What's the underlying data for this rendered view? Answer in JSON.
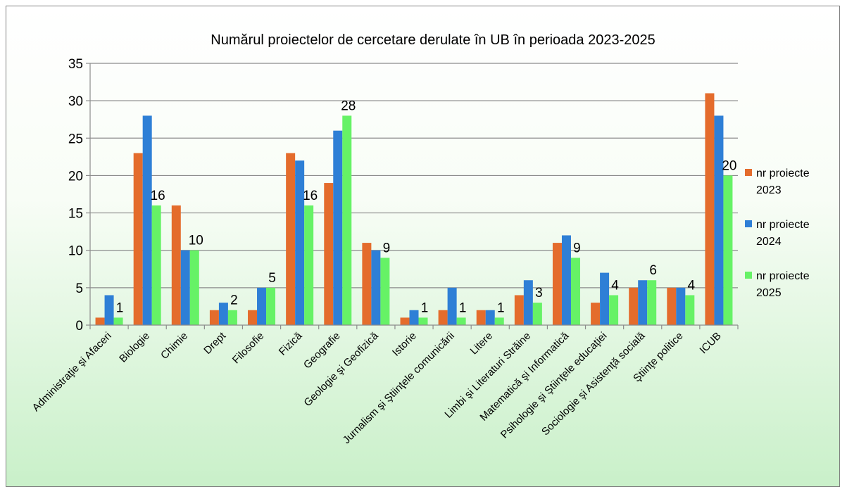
{
  "chart_data": {
    "type": "bar",
    "title": "Numărul proiectelor de cercetare derulate în UB în perioada 2023-2025",
    "xlabel": "",
    "ylabel": "",
    "ylim": [
      0,
      35
    ],
    "yticks": [
      0,
      5,
      10,
      15,
      20,
      25,
      30,
      35
    ],
    "grid": true,
    "legend_position": "right",
    "categories": [
      "Administraţie şi Afaceri",
      "Biologie",
      "Chimie",
      "Drept",
      "Filosofie",
      "Fizică",
      "Geografie",
      "Geologie şi Geofizică",
      "Istorie",
      "Jurnalism şi Ştiinţele comunicării",
      "Litere",
      "Limbi şi Literaturi Străine",
      "Matematică şi Informatică",
      "Psihologie şi Ştiinţele educaţiei",
      "Sociologie şi Asistenţă socială",
      "Ştiinţe politice",
      "ICUB"
    ],
    "series": [
      {
        "name": "nr proiecte 2023",
        "color": "#e46c2c",
        "values": [
          1,
          23,
          16,
          2,
          2,
          23,
          19,
          11,
          1,
          2,
          2,
          4,
          11,
          3,
          5,
          5,
          31
        ]
      },
      {
        "name": "nr proiecte 2024",
        "color": "#2e7fd6",
        "values": [
          4,
          28,
          10,
          3,
          5,
          22,
          26,
          10,
          2,
          5,
          2,
          6,
          12,
          7,
          6,
          5,
          28
        ]
      },
      {
        "name": "nr proiecte 2025",
        "color": "#66f266",
        "values": [
          1,
          16,
          10,
          2,
          5,
          16,
          28,
          9,
          1,
          1,
          1,
          3,
          9,
          4,
          6,
          4,
          20
        ]
      }
    ],
    "data_labels_series": "nr proiecte 2025"
  }
}
